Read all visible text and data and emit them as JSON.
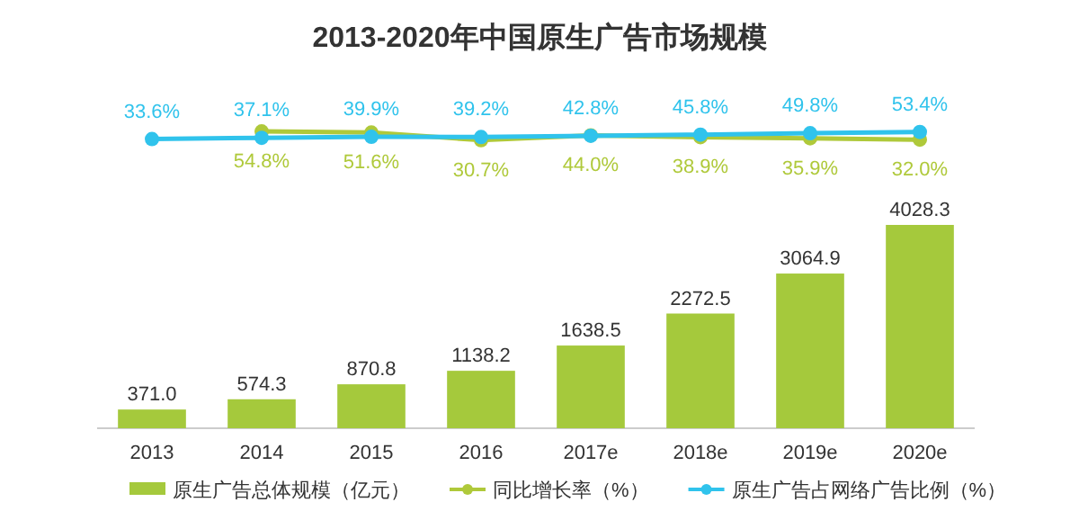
{
  "chart_data": [
    {
      "type": "line",
      "title": "2013-2020年中国原生广告市场规模",
      "categories": [
        null,
        null,
        null,
        null,
        null,
        null,
        null,
        null
      ],
      "series": [
        {
          "name": "同比增长率（%）",
          "color": "#afc93a",
          "values": [
            null,
            54.8,
            51.6,
            30.7,
            44.0,
            38.9,
            35.9,
            32.0
          ],
          "value_labels": [
            null,
            "54.8%",
            "51.6%",
            "30.7%",
            "44.0%",
            "38.9%",
            "35.9%",
            "32.0%"
          ]
        },
        {
          "name": "原生广告占网络广告比例（%）",
          "color": "#30c3ec",
          "values": [
            33.6,
            37.1,
            39.9,
            39.2,
            42.8,
            45.8,
            49.8,
            53.4
          ],
          "value_labels": [
            "33.6%",
            "37.1%",
            "39.9%",
            "39.2%",
            "42.8%",
            "45.8%",
            "49.8%",
            "53.4%"
          ]
        }
      ],
      "legend": "bottom",
      "marker": "circle"
    },
    {
      "type": "bar",
      "categories": [
        "2013",
        "2014",
        "2015",
        "2016",
        "2017e",
        "2018e",
        "2019e",
        "2020e"
      ],
      "series": [
        {
          "name": "原生广告总体规模（亿元）",
          "color": "#a5c93c",
          "values": [
            371.0,
            574.3,
            870.8,
            1138.2,
            1638.5,
            2272.5,
            3064.9,
            4028.3
          ],
          "value_labels": [
            "371.0",
            "574.3",
            "870.8",
            "1138.2",
            "1638.5",
            "2272.5",
            "3064.9",
            "4028.3"
          ]
        }
      ],
      "legend": "bottom"
    }
  ]
}
